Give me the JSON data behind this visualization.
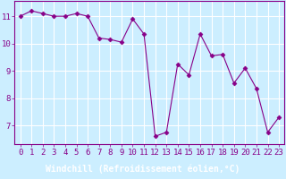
{
  "x": [
    0,
    1,
    2,
    3,
    4,
    5,
    6,
    7,
    8,
    9,
    10,
    11,
    12,
    13,
    14,
    15,
    16,
    17,
    18,
    19,
    20,
    21,
    22,
    23
  ],
  "y": [
    11.0,
    11.2,
    11.1,
    11.0,
    11.0,
    11.1,
    11.0,
    10.2,
    10.15,
    10.05,
    10.9,
    10.35,
    6.6,
    6.75,
    9.25,
    8.85,
    10.35,
    9.55,
    9.6,
    8.55,
    9.1,
    8.35,
    6.75,
    7.3
  ],
  "line_color": "#880088",
  "marker": "D",
  "marker_size": 2.5,
  "bg_color": "#cceeff",
  "plot_bg_color": "#cceeff",
  "grid_color": "#ffffff",
  "xlabel": "Windchill (Refroidissement éolien,°C)",
  "xlabel_bar_color": "#880088",
  "xlabel_text_color": "#ffffff",
  "ylabel": "",
  "ylim": [
    6.3,
    11.55
  ],
  "xlim": [
    -0.5,
    23.5
  ],
  "yticks": [
    7,
    8,
    9,
    10,
    11
  ],
  "xticks": [
    0,
    1,
    2,
    3,
    4,
    5,
    6,
    7,
    8,
    9,
    10,
    11,
    12,
    13,
    14,
    15,
    16,
    17,
    18,
    19,
    20,
    21,
    22,
    23
  ],
  "tick_fontsize": 6.5,
  "xlabel_fontsize": 7.0,
  "axis_label_color": "#880088"
}
